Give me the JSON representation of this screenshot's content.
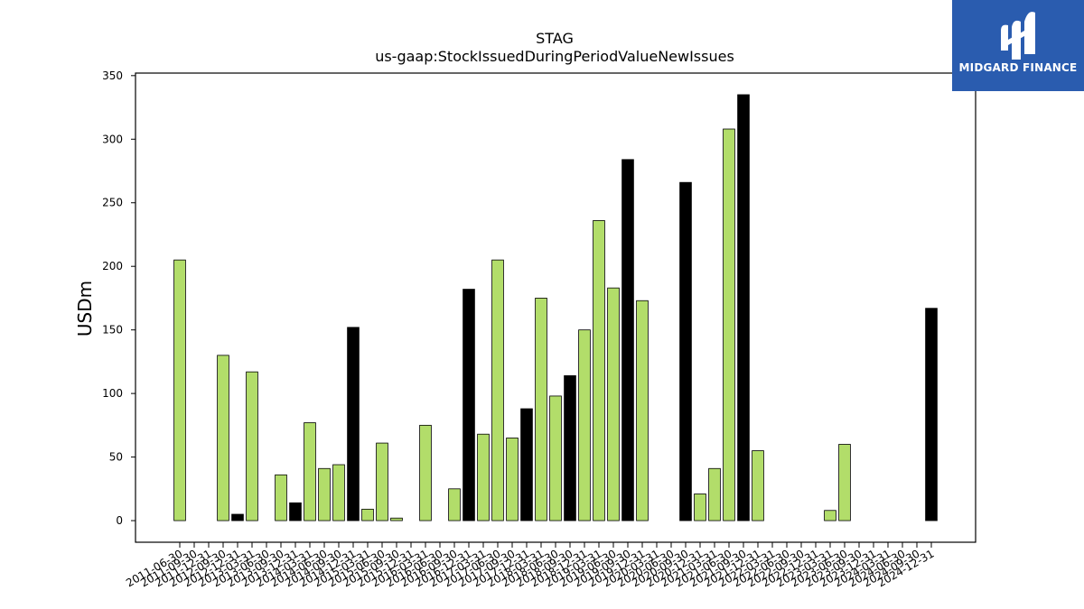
{
  "chart_data": {
    "type": "bar",
    "title": "STAG",
    "subtitle": "us-gaap:StockIssuedDuringPeriodValueNewIssues",
    "ylabel": "USDm",
    "xlabel": "",
    "ylim": [
      -17,
      352
    ],
    "yticks": [
      0,
      50,
      100,
      150,
      200,
      250,
      300,
      350
    ],
    "grid": false,
    "colors": {
      "default": "#b2dd6a",
      "highlight": "#000000",
      "edge": "#000000"
    },
    "categories": [
      "2011-06-30",
      "2011-09-30",
      "2011-12-31",
      "2012-09-30",
      "2012-12-31",
      "2013-03-31",
      "2013-06-30",
      "2013-09-30",
      "2013-12-31",
      "2014-03-31",
      "2014-06-30",
      "2014-09-30",
      "2014-12-31",
      "2015-03-31",
      "2015-06-30",
      "2015-09-30",
      "2015-12-31",
      "2016-03-31",
      "2016-06-30",
      "2016-09-30",
      "2016-12-31",
      "2017-03-31",
      "2017-06-30",
      "2017-09-30",
      "2017-12-31",
      "2018-03-31",
      "2018-06-30",
      "2018-09-30",
      "2018-12-31",
      "2019-03-31",
      "2019-06-30",
      "2019-09-30",
      "2019-12-31",
      "2020-03-31",
      "2020-06-30",
      "2020-09-30",
      "2020-12-31",
      "2021-03-31",
      "2021-06-30",
      "2021-09-30",
      "2021-12-31",
      "2022-03-31",
      "2022-06-30",
      "2022-09-30",
      "2022-12-31",
      "2023-03-31",
      "2023-06-30",
      "2023-09-30",
      "2023-12-31",
      "2024-03-31",
      "2024-06-30",
      "2024-09-30",
      "2024-12-31"
    ],
    "values": [
      205,
      0,
      0,
      130,
      5,
      117,
      0,
      36,
      14,
      77,
      41,
      44,
      152,
      9,
      61,
      2,
      0,
      75,
      0,
      25,
      182,
      68,
      205,
      65,
      88,
      175,
      98,
      114,
      150,
      236,
      183,
      284,
      173,
      0,
      0,
      266,
      21,
      41,
      308,
      335,
      55,
      0,
      0,
      0,
      0,
      8,
      60,
      0,
      0,
      0,
      0,
      0,
      167
    ],
    "highlight": [
      false,
      false,
      false,
      false,
      true,
      false,
      false,
      false,
      true,
      false,
      false,
      false,
      true,
      false,
      false,
      false,
      false,
      false,
      false,
      false,
      true,
      false,
      false,
      false,
      true,
      false,
      false,
      true,
      false,
      false,
      false,
      true,
      false,
      false,
      false,
      true,
      false,
      false,
      false,
      true,
      false,
      false,
      false,
      false,
      false,
      false,
      false,
      false,
      false,
      false,
      false,
      false,
      true
    ]
  },
  "logo": {
    "text": "MIDGARD FINANCE",
    "color": "#2a5caf"
  }
}
